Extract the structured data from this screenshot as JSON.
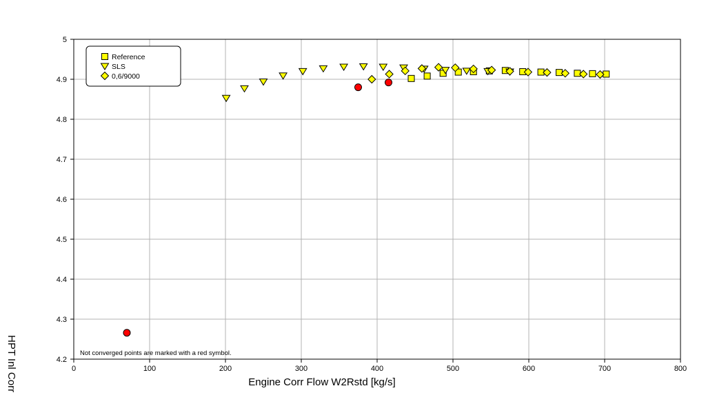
{
  "chart_data": {
    "type": "scatter",
    "xlabel": "Engine Corr Flow W2Rstd [kg/s]",
    "ylabel": "HPT Inl Corr",
    "xlim": [
      0,
      800
    ],
    "ylim": [
      4.2,
      5.0
    ],
    "x_ticks": [
      0,
      100,
      200,
      300,
      400,
      500,
      600,
      700,
      800
    ],
    "y_ticks": [
      4.2,
      4.3,
      4.4,
      4.5,
      4.6,
      4.7,
      4.8,
      4.9,
      5.0
    ],
    "grid": true,
    "legend_position": "top-left",
    "annotation": "Not converged points are marked with a red symbol.",
    "colors": {
      "marker_fill": "#ffff00",
      "marker_stroke": "#000000",
      "not_converged": "#ff0000",
      "grid": "#b3b3b3"
    },
    "series": [
      {
        "name": "Reference",
        "marker": "square",
        "points": [
          {
            "x": 445,
            "y": 4.902
          },
          {
            "x": 466,
            "y": 4.908
          },
          {
            "x": 487,
            "y": 4.915
          },
          {
            "x": 507,
            "y": 4.918
          },
          {
            "x": 527,
            "y": 4.919
          },
          {
            "x": 548,
            "y": 4.921
          },
          {
            "x": 569,
            "y": 4.922
          },
          {
            "x": 592,
            "y": 4.919
          },
          {
            "x": 616,
            "y": 4.918
          },
          {
            "x": 640,
            "y": 4.917
          },
          {
            "x": 664,
            "y": 4.915
          },
          {
            "x": 684,
            "y": 4.914
          },
          {
            "x": 702,
            "y": 4.913
          }
        ]
      },
      {
        "name": "SLS",
        "marker": "triangle-down",
        "points": [
          {
            "x": 201,
            "y": 4.853
          },
          {
            "x": 225,
            "y": 4.877
          },
          {
            "x": 250,
            "y": 4.894
          },
          {
            "x": 276,
            "y": 4.909
          },
          {
            "x": 302,
            "y": 4.92
          },
          {
            "x": 329,
            "y": 4.927
          },
          {
            "x": 356,
            "y": 4.931
          },
          {
            "x": 382,
            "y": 4.932
          },
          {
            "x": 408,
            "y": 4.931
          },
          {
            "x": 435,
            "y": 4.929
          },
          {
            "x": 462,
            "y": 4.926
          },
          {
            "x": 490,
            "y": 4.923
          },
          {
            "x": 518,
            "y": 4.921
          },
          {
            "x": 546,
            "y": 4.92
          },
          {
            "x": 575,
            "y": 4.919
          }
        ]
      },
      {
        "name": "0,6/9000",
        "marker": "diamond",
        "points": [
          {
            "x": 393,
            "y": 4.9
          },
          {
            "x": 416,
            "y": 4.913
          },
          {
            "x": 437,
            "y": 4.921
          },
          {
            "x": 459,
            "y": 4.927
          },
          {
            "x": 481,
            "y": 4.93
          },
          {
            "x": 503,
            "y": 4.929
          },
          {
            "x": 527,
            "y": 4.926
          },
          {
            "x": 551,
            "y": 4.923
          },
          {
            "x": 575,
            "y": 4.92
          },
          {
            "x": 599,
            "y": 4.918
          },
          {
            "x": 624,
            "y": 4.917
          },
          {
            "x": 648,
            "y": 4.915
          },
          {
            "x": 672,
            "y": 4.913
          },
          {
            "x": 694,
            "y": 4.912
          }
        ]
      }
    ],
    "not_converged_points": [
      {
        "x": 70,
        "y": 4.266
      },
      {
        "x": 375,
        "y": 4.88
      },
      {
        "x": 415,
        "y": 4.892
      }
    ]
  }
}
